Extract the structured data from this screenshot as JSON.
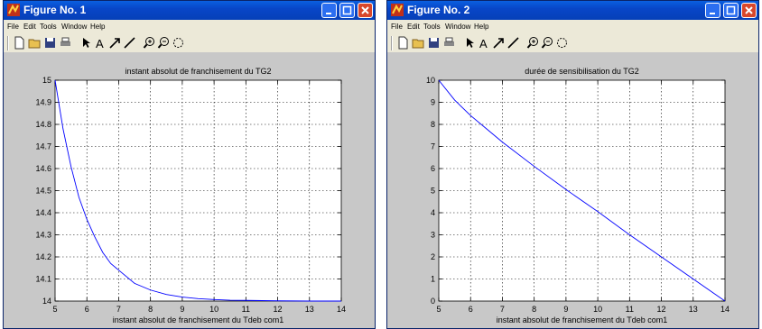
{
  "figures": [
    {
      "window_title": "Figure No. 1",
      "menus": [
        "File",
        "Edit",
        "Tools",
        "Window",
        "Help"
      ],
      "chart_data": {
        "type": "line",
        "title": "instant absolut de franchisement du TG2",
        "xlabel": "instant absolut de franchisement du Tdeb com1",
        "ylabel": "",
        "xlim": [
          5,
          14
        ],
        "ylim": [
          14,
          15
        ],
        "xticks": [
          5,
          6,
          7,
          8,
          9,
          10,
          11,
          12,
          13,
          14
        ],
        "yticks": [
          14,
          14.1,
          14.2,
          14.3,
          14.4,
          14.5,
          14.6,
          14.7,
          14.8,
          14.9,
          15
        ],
        "grid": true,
        "series": [
          {
            "color": "#0000ff",
            "x": [
              5,
              5.25,
              5.5,
              5.75,
              6,
              6.25,
              6.5,
              6.75,
              7,
              7.5,
              8,
              8.5,
              9,
              9.5,
              10,
              10.5,
              11,
              11.5,
              12,
              13,
              14
            ],
            "y": [
              15,
              14.78,
              14.61,
              14.47,
              14.37,
              14.29,
              14.22,
              14.17,
              14.14,
              14.08,
              14.05,
              14.03,
              14.018,
              14.011,
              14.007,
              14.004,
              14.003,
              14.002,
              14.001,
              14.0,
              14.0
            ]
          }
        ]
      }
    },
    {
      "window_title": "Figure No. 2",
      "menus": [
        "File",
        "Edit",
        "Tools",
        "Window",
        "Help"
      ],
      "chart_data": {
        "type": "line",
        "title": "durée de sensibilisation du TG2",
        "xlabel": "instant absolut de franchisement du Tdeb com1",
        "ylabel": "",
        "xlim": [
          5,
          14
        ],
        "ylim": [
          0,
          10
        ],
        "xticks": [
          5,
          6,
          7,
          8,
          9,
          10,
          11,
          12,
          13,
          14
        ],
        "yticks": [
          0,
          1,
          2,
          3,
          4,
          5,
          6,
          7,
          8,
          9,
          10
        ],
        "grid": true,
        "series": [
          {
            "color": "#0000ff",
            "x": [
              5,
              5.5,
              6,
              6.5,
              7,
              8,
              9,
              10,
              11,
              12,
              13,
              14
            ],
            "y": [
              10,
              9.1,
              8.4,
              7.8,
              7.2,
              6.1,
              5.05,
              4.05,
              3.0,
              2.0,
              1.0,
              0
            ]
          }
        ]
      }
    }
  ]
}
